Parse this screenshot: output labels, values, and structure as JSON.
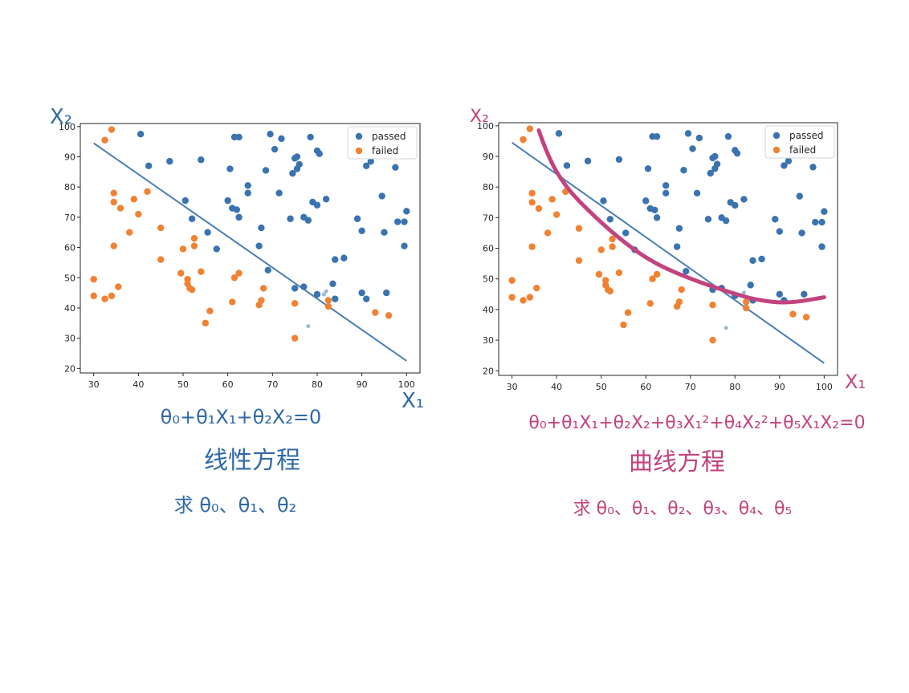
{
  "colors": {
    "passed": "#3a73b0",
    "failed": "#f08232",
    "line": "#4a7db4",
    "annotation_blue": "#2f6aa6",
    "annotation_magenta": "#c2437e",
    "curve": "#c2437e"
  },
  "chart_data": [
    {
      "type": "scatter",
      "xlim": [
        27,
        103
      ],
      "ylim": [
        18.5,
        101
      ],
      "xticks": [
        30,
        40,
        50,
        60,
        70,
        80,
        90,
        100
      ],
      "yticks": [
        20,
        30,
        40,
        50,
        60,
        70,
        80,
        90,
        100
      ],
      "legend_position": "top-right",
      "series": [
        {
          "name": "passed",
          "points": [
            [
              40.5,
              97.5
            ],
            [
              42.3,
              87
            ],
            [
              47,
              88.5
            ],
            [
              54,
              89
            ],
            [
              60.5,
              86
            ],
            [
              61.5,
              96.5
            ],
            [
              62.5,
              96.5
            ],
            [
              64.5,
              80.5
            ],
            [
              64.5,
              78
            ],
            [
              68.5,
              85.5
            ],
            [
              69.5,
              97.5
            ],
            [
              70.5,
              92.5
            ],
            [
              72,
              96
            ],
            [
              71.5,
              78
            ],
            [
              74.5,
              84.5
            ],
            [
              75,
              89.5
            ],
            [
              75.5,
              90
            ],
            [
              75.5,
              86
            ],
            [
              76,
              87.5
            ],
            [
              78.5,
              96.5
            ],
            [
              80,
              92
            ],
            [
              80.5,
              91
            ],
            [
              79,
              75
            ],
            [
              80,
              74
            ],
            [
              82,
              76
            ],
            [
              74,
              69.5
            ],
            [
              77,
              70
            ],
            [
              78,
              69
            ],
            [
              60,
              75.5
            ],
            [
              61,
              73
            ],
            [
              62,
              72.5
            ],
            [
              62.5,
              70
            ],
            [
              50.5,
              75.5
            ],
            [
              52,
              69.5
            ],
            [
              55.5,
              65
            ],
            [
              57.5,
              59.5
            ],
            [
              67,
              60.5
            ],
            [
              67.5,
              66.5
            ],
            [
              69,
              52.5
            ],
            [
              75,
              46.5
            ],
            [
              77,
              47
            ],
            [
              80,
              44.5
            ],
            [
              83.5,
              48
            ],
            [
              84,
              56
            ],
            [
              86,
              56.5
            ],
            [
              84,
              43
            ],
            [
              89,
              69.5
            ],
            [
              90,
              65.5
            ],
            [
              91,
              87
            ],
            [
              92,
              88.5
            ],
            [
              94.5,
              77
            ],
            [
              95,
              65
            ],
            [
              95.5,
              45
            ],
            [
              97.5,
              86.5
            ],
            [
              98,
              68.5
            ],
            [
              99.5,
              68.5
            ],
            [
              100,
              72
            ],
            [
              99.5,
              60.5
            ],
            [
              90,
              45
            ],
            [
              91,
              43
            ]
          ]
        },
        {
          "name": "failed",
          "points": [
            [
              30,
              49.5
            ],
            [
              30,
              44
            ],
            [
              32.5,
              43
            ],
            [
              32.5,
              95.5
            ],
            [
              34,
              99
            ],
            [
              34.5,
              78
            ],
            [
              34.5,
              75
            ],
            [
              34.5,
              60.5
            ],
            [
              34,
              44
            ],
            [
              35.5,
              47
            ],
            [
              36,
              73
            ],
            [
              38,
              65
            ],
            [
              39,
              76
            ],
            [
              40,
              71
            ],
            [
              42,
              78.5
            ],
            [
              45,
              66.5
            ],
            [
              45,
              56
            ],
            [
              49.5,
              51.5
            ],
            [
              50,
              59.5
            ],
            [
              51,
              49.5
            ],
            [
              51,
              48
            ],
            [
              51.5,
              46.5
            ],
            [
              52,
              46
            ],
            [
              52.5,
              63
            ],
            [
              52.5,
              60.5
            ],
            [
              54,
              52
            ],
            [
              55,
              35
            ],
            [
              56,
              39
            ],
            [
              61,
              42
            ],
            [
              61.5,
              50
            ],
            [
              62.5,
              51.5
            ],
            [
              67,
              41
            ],
            [
              67.5,
              42.5
            ],
            [
              68,
              46.5
            ],
            [
              75,
              41.5
            ],
            [
              75,
              30
            ],
            [
              82.5,
              42.5
            ],
            [
              82.5,
              40.5
            ],
            [
              93,
              38.5
            ],
            [
              96,
              37.5
            ]
          ]
        },
        {
          "name": "",
          "points": [
            [
              78,
              34
            ],
            [
              82,
              45.5
            ],
            [
              81.5,
              44.5
            ]
          ]
        }
      ]
    },
    {
      "type": "scatter",
      "xlim": [
        27,
        103
      ],
      "ylim": [
        18.5,
        101
      ],
      "xticks": [
        30,
        40,
        50,
        60,
        70,
        80,
        90,
        100
      ],
      "yticks": [
        20,
        30,
        40,
        50,
        60,
        70,
        80,
        90,
        100
      ],
      "legend_position": "top-right",
      "series": [
        {
          "name": "passed",
          "points": [
            [
              40.5,
              97.5
            ],
            [
              42.3,
              87
            ],
            [
              47,
              88.5
            ],
            [
              54,
              89
            ],
            [
              60.5,
              86
            ],
            [
              61.5,
              96.5
            ],
            [
              62.5,
              96.5
            ],
            [
              64.5,
              80.5
            ],
            [
              64.5,
              78
            ],
            [
              68.5,
              85.5
            ],
            [
              69.5,
              97.5
            ],
            [
              70.5,
              92.5
            ],
            [
              72,
              96
            ],
            [
              71.5,
              78
            ],
            [
              74.5,
              84.5
            ],
            [
              75,
              89.5
            ],
            [
              75.5,
              90
            ],
            [
              75.5,
              86
            ],
            [
              76,
              87.5
            ],
            [
              78.5,
              96.5
            ],
            [
              80,
              92
            ],
            [
              80.5,
              91
            ],
            [
              79,
              75
            ],
            [
              80,
              74
            ],
            [
              82,
              76
            ],
            [
              74,
              69.5
            ],
            [
              77,
              70
            ],
            [
              78,
              69
            ],
            [
              60,
              75.5
            ],
            [
              61,
              73
            ],
            [
              62,
              72.5
            ],
            [
              62.5,
              70
            ],
            [
              50.5,
              75.5
            ],
            [
              52,
              69.5
            ],
            [
              55.5,
              65
            ],
            [
              57.5,
              59.5
            ],
            [
              67,
              60.5
            ],
            [
              67.5,
              66.5
            ],
            [
              69,
              52.5
            ],
            [
              75,
              46.5
            ],
            [
              77,
              47
            ],
            [
              80,
              44.5
            ],
            [
              83.5,
              48
            ],
            [
              84,
              56
            ],
            [
              86,
              56.5
            ],
            [
              84,
              43
            ],
            [
              89,
              69.5
            ],
            [
              90,
              65.5
            ],
            [
              91,
              87
            ],
            [
              92,
              88.5
            ],
            [
              94.5,
              77
            ],
            [
              95,
              65
            ],
            [
              95.5,
              45
            ],
            [
              97.5,
              86.5
            ],
            [
              98,
              68.5
            ],
            [
              99.5,
              68.5
            ],
            [
              100,
              72
            ],
            [
              99.5,
              60.5
            ],
            [
              90,
              45
            ],
            [
              91,
              43
            ]
          ]
        },
        {
          "name": "failed",
          "points": [
            [
              30,
              49.5
            ],
            [
              30,
              44
            ],
            [
              32.5,
              43
            ],
            [
              32.5,
              95.5
            ],
            [
              34,
              99
            ],
            [
              34.5,
              78
            ],
            [
              34.5,
              75
            ],
            [
              34.5,
              60.5
            ],
            [
              34,
              44
            ],
            [
              35.5,
              47
            ],
            [
              36,
              73
            ],
            [
              38,
              65
            ],
            [
              39,
              76
            ],
            [
              40,
              71
            ],
            [
              42,
              78.5
            ],
            [
              45,
              66.5
            ],
            [
              45,
              56
            ],
            [
              49.5,
              51.5
            ],
            [
              50,
              59.5
            ],
            [
              51,
              49.5
            ],
            [
              51,
              48
            ],
            [
              51.5,
              46.5
            ],
            [
              52,
              46
            ],
            [
              52.5,
              63
            ],
            [
              52.5,
              60.5
            ],
            [
              54,
              52
            ],
            [
              55,
              35
            ],
            [
              56,
              39
            ],
            [
              61,
              42
            ],
            [
              61.5,
              50
            ],
            [
              62.5,
              51.5
            ],
            [
              67,
              41
            ],
            [
              67.5,
              42.5
            ],
            [
              68,
              46.5
            ],
            [
              75,
              41.5
            ],
            [
              75,
              30
            ],
            [
              82.5,
              42.5
            ],
            [
              82.5,
              40.5
            ],
            [
              93,
              38.5
            ],
            [
              96,
              37.5
            ]
          ]
        },
        {
          "name": "",
          "points": [
            [
              78,
              34
            ],
            [
              82,
              45.5
            ],
            [
              81.5,
              44.5
            ]
          ]
        }
      ]
    }
  ],
  "left_panel": {
    "boundary_line": [
      [
        30,
        94.5
      ],
      [
        100,
        22.5
      ]
    ],
    "axis_label_y": "X₂",
    "axis_label_x": "X₁",
    "equation": "θ₀+θ₁X₁+θ₂X₂=0",
    "equation_type": "线性方程",
    "solve_for": "求 θ₀、θ₁、θ₂"
  },
  "right_panel": {
    "boundary_line": [
      [
        30,
        94.5
      ],
      [
        100,
        22.5
      ]
    ],
    "curve": [
      [
        36,
        98.5
      ],
      [
        38,
        90
      ],
      [
        42,
        80
      ],
      [
        48,
        71
      ],
      [
        55,
        62
      ],
      [
        62,
        55
      ],
      [
        70,
        50
      ],
      [
        78,
        46
      ],
      [
        85,
        43
      ],
      [
        92,
        42
      ],
      [
        100,
        44
      ]
    ],
    "axis_label_y": "X₂",
    "axis_label_x": "X₁",
    "equation": "θ₀+θ₁X₁+θ₂X₂+θ₃X₁²+θ₄X₂²+θ₅X₁X₂=0",
    "equation_type": "曲线方程",
    "solve_for": "求 θ₀、θ₁、θ₂、θ₃、θ₄、θ₅"
  }
}
